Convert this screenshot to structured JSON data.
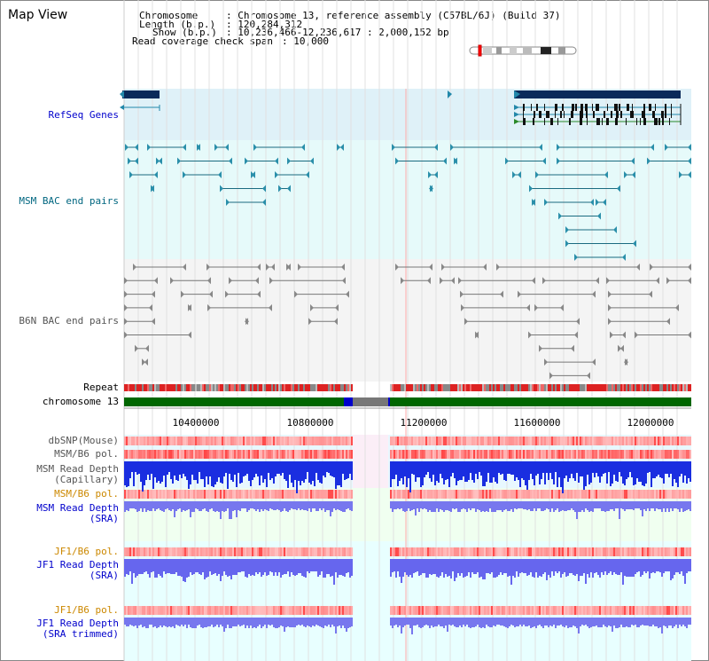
{
  "window": {
    "title": "Map View"
  },
  "info": {
    "chromosome_label": "Chromosome",
    "chromosome_value": ": Chromosome 13, reference assembly (C57BL/6J) (Build 37)",
    "length_label": "Length (b.p.)",
    "length_value": ": 120,284,312",
    "show_label": "Show (b.p.)",
    "show_value": ": 10,236,466-12,236,617 : 2,000,152 bp",
    "coverage_label": "Read coverage check span",
    "coverage_value": ": 10,000"
  },
  "tracks": {
    "refseq": "RefSeq Genes",
    "msm_bac": "MSM BAC end pairs",
    "b6n_bac": "B6N BAC end pairs",
    "repeat": "Repeat",
    "chromosome": "chromosome 13",
    "dbsnp": "dbSNP(Mouse)",
    "msm_b6_pol_1": "MSM/B6 pol.",
    "msm_read_depth_cap_1": "MSM Read Depth",
    "msm_read_depth_cap_2": "(Capillary)",
    "msm_b6_pol_2": "MSM/B6 pol.",
    "msm_read_depth_sra_1": "MSM Read Depth",
    "msm_read_depth_sra_2": "(SRA)",
    "jf1_b6_pol_1": "JF1/B6 pol.",
    "jf1_read_depth_1": "JF1 Read Depth",
    "jf1_read_depth_2": "(SRA)",
    "jf1_b6_pol_2": "JF1/B6 pol.",
    "jf1_read_depth_trim_1": "JF1 Read Depth",
    "jf1_read_depth_trim_2": "(SRA trimmed)"
  },
  "axis": {
    "ticks": [
      "10400000",
      "10800000",
      "11200000",
      "11600000",
      "12000000"
    ]
  },
  "colors": {
    "refseq_label": "#0000cc",
    "msm_bac_label": "#006680",
    "b6n_label": "#555555",
    "pol_label": "#cc8800",
    "depth_label": "#0000cc",
    "gene_dark": "#0a2a5a",
    "chromosome_bar": "#006600",
    "gap": "#0000cc"
  }
}
